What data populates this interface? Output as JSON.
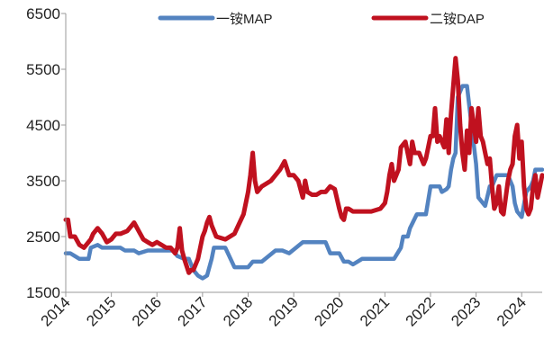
{
  "chart_data": {
    "type": "line",
    "title": "",
    "xlabel": "",
    "ylabel": "",
    "xlim": [
      2014.0,
      2024.45
    ],
    "ylim": [
      1500,
      6500
    ],
    "y_ticks": [
      1500,
      2500,
      3500,
      4500,
      5500,
      6500
    ],
    "y_tick_labels": [
      "1500",
      "2500",
      "3500",
      "4500",
      "5500",
      "6500"
    ],
    "x_ticks": [
      2014,
      2015,
      2016,
      2017,
      2018,
      2019,
      2020,
      2021,
      2022,
      2023,
      2024
    ],
    "x_tick_labels": [
      "2014",
      "2015",
      "2016",
      "2017",
      "2018",
      "2019",
      "2020",
      "2021",
      "2022",
      "2023",
      "2024"
    ],
    "grid": false,
    "legend_position": "top",
    "series": [
      {
        "name": "一铵MAP",
        "color": "#5383c0",
        "x": [
          2014.0,
          2014.1,
          2014.2,
          2014.3,
          2014.5,
          2014.55,
          2014.7,
          2014.8,
          2015.0,
          2015.2,
          2015.3,
          2015.5,
          2015.6,
          2015.8,
          2016.0,
          2016.2,
          2016.35,
          2016.45,
          2016.6,
          2016.7,
          2016.8,
          2016.9,
          2017.0,
          2017.1,
          2017.2,
          2017.25,
          2017.35,
          2017.5,
          2017.7,
          2018.0,
          2018.1,
          2018.2,
          2018.3,
          2018.6,
          2018.75,
          2018.9,
          2019.2,
          2019.4,
          2019.5,
          2019.7,
          2019.8,
          2019.9,
          2020.0,
          2020.1,
          2020.2,
          2020.3,
          2020.5,
          2020.8,
          2021.0,
          2021.1,
          2021.2,
          2021.35,
          2021.4,
          2021.5,
          2021.55,
          2021.7,
          2021.8,
          2021.9,
          2022.0,
          2022.1,
          2022.2,
          2022.25,
          2022.35,
          2022.4,
          2022.45,
          2022.5,
          2022.55,
          2022.6,
          2022.7,
          2022.8,
          2022.9,
          2023.0,
          2023.05,
          2023.2,
          2023.3,
          2023.35,
          2023.45,
          2023.55,
          2023.6,
          2023.7,
          2023.8,
          2023.85,
          2023.9,
          2024.0,
          2024.1,
          2024.2,
          2024.25,
          2024.3,
          2024.35,
          2024.45
        ],
        "values": [
          2200,
          2200,
          2150,
          2100,
          2100,
          2300,
          2350,
          2300,
          2300,
          2300,
          2250,
          2250,
          2200,
          2250,
          2250,
          2250,
          2250,
          2150,
          2100,
          2100,
          1900,
          1800,
          1750,
          1800,
          2100,
          2300,
          2300,
          2300,
          1950,
          1950,
          2050,
          2050,
          2050,
          2250,
          2250,
          2200,
          2400,
          2400,
          2400,
          2400,
          2200,
          2200,
          2200,
          2050,
          2050,
          2000,
          2100,
          2100,
          2100,
          2100,
          2100,
          2300,
          2500,
          2500,
          2650,
          2900,
          2900,
          2900,
          3400,
          3400,
          3400,
          3300,
          3350,
          3400,
          3700,
          3900,
          4000,
          5000,
          5200,
          5200,
          4500,
          3800,
          3200,
          3050,
          3400,
          3400,
          3600,
          3600,
          3600,
          3600,
          3400,
          3100,
          2950,
          2850,
          3300,
          3400,
          3500,
          3700,
          3700,
          3700
        ]
      },
      {
        "name": "二铵DAP",
        "color": "#c0111f",
        "x": [
          2014.0,
          2014.05,
          2014.1,
          2014.2,
          2014.3,
          2014.4,
          2014.55,
          2014.6,
          2014.7,
          2014.8,
          2014.9,
          2015.0,
          2015.1,
          2015.2,
          2015.35,
          2015.45,
          2015.5,
          2015.6,
          2015.7,
          2015.8,
          2015.9,
          2016.0,
          2016.1,
          2016.2,
          2016.3,
          2016.4,
          2016.45,
          2016.5,
          2016.55,
          2016.6,
          2016.7,
          2016.75,
          2016.8,
          2016.9,
          2017.0,
          2017.05,
          2017.1,
          2017.15,
          2017.2,
          2017.3,
          2017.5,
          2017.7,
          2017.9,
          2018.0,
          2018.05,
          2018.1,
          2018.15,
          2018.2,
          2018.3,
          2018.5,
          2018.7,
          2018.8,
          2018.9,
          2019.0,
          2019.1,
          2019.2,
          2019.25,
          2019.3,
          2019.4,
          2019.5,
          2019.6,
          2019.7,
          2019.8,
          2019.9,
          2020.0,
          2020.05,
          2020.1,
          2020.15,
          2020.2,
          2020.3,
          2020.5,
          2020.7,
          2020.9,
          2021.0,
          2021.05,
          2021.1,
          2021.15,
          2021.2,
          2021.3,
          2021.35,
          2021.45,
          2021.55,
          2021.6,
          2021.65,
          2021.75,
          2021.85,
          2021.9,
          2022.0,
          2022.05,
          2022.1,
          2022.15,
          2022.2,
          2022.25,
          2022.3,
          2022.35,
          2022.4,
          2022.45,
          2022.5,
          2022.55,
          2022.6,
          2022.65,
          2022.7,
          2022.75,
          2022.8,
          2022.85,
          2022.9,
          2022.95,
          2023.0,
          2023.05,
          2023.1,
          2023.15,
          2023.2,
          2023.25,
          2023.3,
          2023.35,
          2023.4,
          2023.45,
          2023.5,
          2023.55,
          2023.6,
          2023.65,
          2023.7,
          2023.75,
          2023.8,
          2023.85,
          2023.9,
          2023.95,
          2024.0,
          2024.05,
          2024.1,
          2024.15,
          2024.2,
          2024.25,
          2024.3,
          2024.35,
          2024.4,
          2024.45
        ],
        "values": [
          2800,
          2800,
          2500,
          2500,
          2350,
          2300,
          2450,
          2550,
          2650,
          2550,
          2400,
          2450,
          2550,
          2550,
          2600,
          2700,
          2750,
          2600,
          2450,
          2400,
          2350,
          2400,
          2350,
          2300,
          2300,
          2200,
          2300,
          2650,
          2250,
          2100,
          1850,
          1900,
          1900,
          2100,
          2500,
          2600,
          2750,
          2850,
          2700,
          2500,
          2450,
          2550,
          2900,
          3300,
          3600,
          4000,
          3500,
          3300,
          3400,
          3500,
          3700,
          3850,
          3600,
          3600,
          3500,
          3200,
          3500,
          3300,
          3250,
          3250,
          3300,
          3300,
          3400,
          3350,
          3000,
          2850,
          2800,
          3000,
          3000,
          2950,
          2950,
          2950,
          3000,
          3100,
          3300,
          3600,
          3800,
          3500,
          3700,
          4100,
          4200,
          3800,
          4200,
          4000,
          4000,
          3800,
          3900,
          4300,
          4300,
          4800,
          4200,
          4300,
          4200,
          4100,
          4600,
          4000,
          4700,
          5200,
          5700,
          5300,
          4500,
          4000,
          3700,
          4400,
          4000,
          4800,
          4500,
          4200,
          4800,
          4300,
          4200,
          4000,
          3800,
          3900,
          3400,
          3000,
          3100,
          3400,
          2950,
          2900,
          3200,
          3500,
          3700,
          3800,
          4300,
          4500,
          3900,
          4200,
          3400,
          3000,
          2900,
          3000,
          3400,
          3600,
          3200,
          3400,
          3600
        ]
      }
    ]
  }
}
